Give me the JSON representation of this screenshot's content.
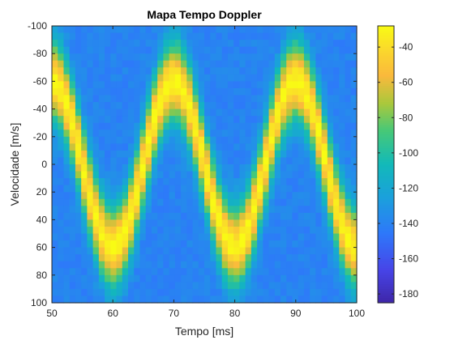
{
  "chart_data": {
    "type": "heatmap",
    "title": "Mapa Tempo Doppler",
    "xlabel": "Tempo [ms]",
    "ylabel": "Velocidade [m/s]",
    "xlim": [
      50,
      100
    ],
    "ylim": [
      -100,
      100
    ],
    "y_axis_direction": "reversed",
    "xticks": [
      50,
      60,
      70,
      80,
      90,
      100
    ],
    "yticks": [
      -100,
      -80,
      -60,
      -40,
      -20,
      0,
      20,
      40,
      60,
      80,
      100
    ],
    "colorbar": {
      "limits": [
        -185,
        -28
      ],
      "ticks": [
        -40,
        -60,
        -80,
        -100,
        -120,
        -140,
        -160,
        -180
      ],
      "colormap": "parula"
    },
    "signal": {
      "description_values": "Doppler ridge: center velocity oscillates sinusoidally over time",
      "period_ms": 20,
      "peak_times_ms": [
        70,
        90
      ],
      "trough_times_ms": [
        60,
        80
      ],
      "velocity_amplitude_mps": 60,
      "ridge_width_mps": 50,
      "peak_level_db": -30,
      "background_level_db": -140
    },
    "grid": false,
    "colors": {
      "axis": "#262626",
      "background": "#ffffff"
    }
  }
}
